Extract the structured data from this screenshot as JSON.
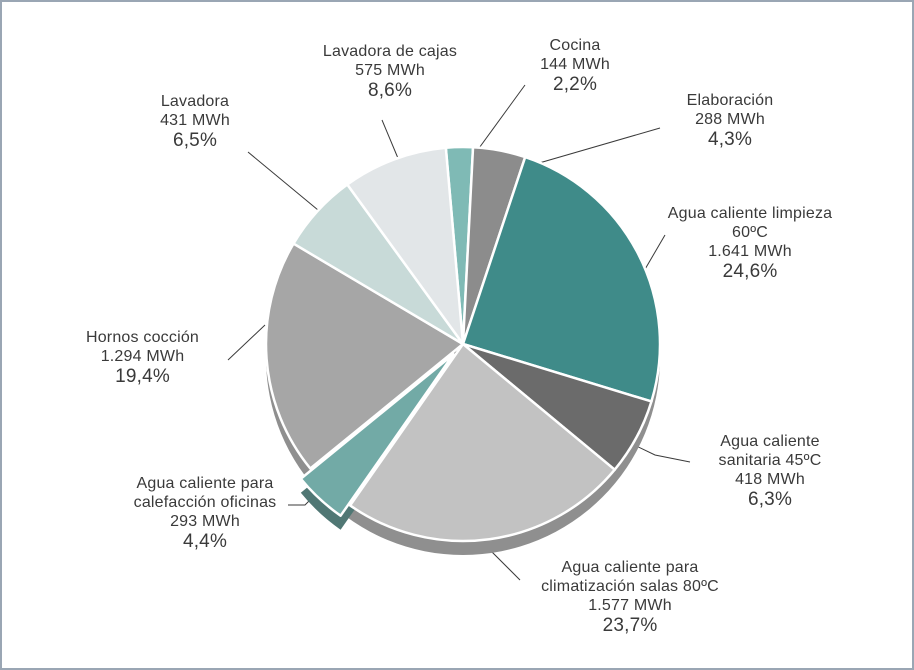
{
  "chart_data": {
    "type": "pie",
    "title": "",
    "slices": [
      {
        "name": "Cocina",
        "value_mwh": "144 MWh",
        "percent_label": "2,2%",
        "value": 2.2,
        "color": "#7fbab5"
      },
      {
        "name": "Elaboración",
        "value_mwh": "288 MWh",
        "percent_label": "4,3%",
        "value": 4.3,
        "color": "#8c8c8c"
      },
      {
        "name": "Agua caliente limpieza",
        "name_line2": "60ºC",
        "value_mwh": "1.641 MWh",
        "percent_label": "24,6%",
        "value": 24.6,
        "color": "#3f8b89"
      },
      {
        "name": "Agua caliente",
        "name_line2": "sanitaria 45ºC",
        "value_mwh": "418 MWh",
        "percent_label": "6,3%",
        "value": 6.3,
        "color": "#6b6b6b"
      },
      {
        "name": "Agua caliente para",
        "name_line2": "climatización salas 80ºC",
        "value_mwh": "1.577 MWh",
        "percent_label": "23,7%",
        "value": 23.7,
        "color": "#c2c2c2"
      },
      {
        "name": "Agua caliente para",
        "name_line2": "calefacción oficinas",
        "value_mwh": "293 MWh",
        "percent_label": "4,4%",
        "value": 4.4,
        "color": "#72aaa6"
      },
      {
        "name": "Hornos cocción",
        "value_mwh": "1.294 MWh",
        "percent_label": "19,4%",
        "value": 19.4,
        "color": "#a6a6a6"
      },
      {
        "name": "Lavadora",
        "value_mwh": "431 MWh",
        "percent_label": "6,5%",
        "value": 6.5,
        "color": "#c8dad8"
      },
      {
        "name": "Lavadora de cajas",
        "value_mwh": "575 MWh",
        "percent_label": "8,6%",
        "value": 8.6,
        "color": "#e2e6e8"
      }
    ],
    "exploded": [
      "Agua caliente limpieza",
      "Agua caliente para calefacción oficinas"
    ]
  }
}
